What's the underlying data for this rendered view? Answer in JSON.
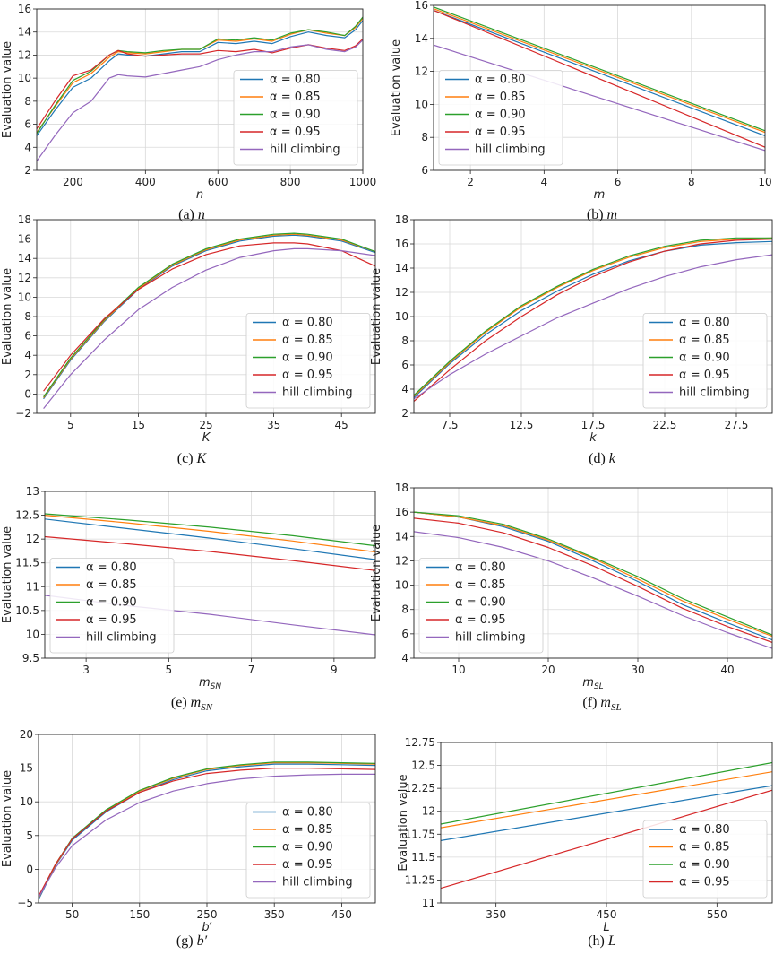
{
  "colors": {
    "a080": "#1f77b4",
    "a085": "#ff7f0e",
    "a090": "#2ca02c",
    "a095": "#d62728",
    "hill": "#9467bd",
    "grid": "#d9d9d9"
  },
  "chart_data": [
    {
      "type": "line",
      "caption": "(a) n",
      "xlabel": "n",
      "ylabel": "Evaluation value",
      "xlim": [
        100,
        1000
      ],
      "ylim": [
        2,
        16
      ],
      "xticks": [
        200,
        400,
        600,
        800,
        1000
      ],
      "xtick_labels": [
        "200",
        "400",
        "600",
        "800",
        "1000"
      ],
      "yticks": [
        2,
        4,
        6,
        8,
        10,
        12,
        14,
        16
      ],
      "ytick_labels": [
        "2",
        "4",
        "6",
        "8",
        "10",
        "12",
        "14",
        "16"
      ],
      "legend": "lower-right",
      "x": [
        100,
        150,
        200,
        250,
        300,
        325,
        350,
        400,
        450,
        500,
        550,
        600,
        650,
        700,
        750,
        800,
        850,
        900,
        950,
        980,
        1000
      ],
      "series": [
        {
          "name": "α = 0.80",
          "color": "a080",
          "values": [
            5.0,
            7.2,
            9.2,
            10.0,
            11.5,
            12.1,
            12.0,
            11.9,
            12.1,
            12.3,
            12.3,
            13.1,
            13.0,
            13.2,
            13.0,
            13.6,
            14.0,
            13.7,
            13.5,
            14.2,
            15.0
          ]
        },
        {
          "name": "α = 0.85",
          "color": "a085",
          "values": [
            5.3,
            7.5,
            9.6,
            10.4,
            11.8,
            12.3,
            12.2,
            12.1,
            12.3,
            12.5,
            12.5,
            13.3,
            13.2,
            13.4,
            13.2,
            13.8,
            14.2,
            13.9,
            13.7,
            14.4,
            15.2
          ]
        },
        {
          "name": "α = 0.90",
          "color": "a090",
          "values": [
            5.2,
            7.6,
            9.8,
            10.6,
            12.0,
            12.4,
            12.3,
            12.2,
            12.4,
            12.5,
            12.5,
            13.4,
            13.3,
            13.5,
            13.3,
            13.9,
            14.2,
            14.0,
            13.7,
            14.5,
            15.3
          ]
        },
        {
          "name": "α = 0.95",
          "color": "a095",
          "values": [
            5.6,
            8.0,
            10.2,
            10.7,
            12.0,
            12.4,
            12.1,
            11.9,
            12.0,
            12.1,
            12.1,
            12.4,
            12.3,
            12.5,
            12.2,
            12.6,
            12.9,
            12.6,
            12.4,
            12.8,
            13.4
          ]
        },
        {
          "name": "hill climbing",
          "color": "hill",
          "values": [
            2.8,
            5.0,
            7.0,
            8.0,
            10.0,
            10.3,
            10.2,
            10.1,
            10.4,
            10.7,
            11.0,
            11.6,
            12.0,
            12.3,
            12.3,
            12.7,
            12.9,
            12.5,
            12.3,
            12.7,
            13.3
          ]
        }
      ]
    },
    {
      "type": "line",
      "caption": "(b) m",
      "xlabel": "m",
      "ylabel": "Evaluation value",
      "xlim": [
        1,
        10
      ],
      "ylim": [
        6,
        16
      ],
      "xticks": [
        2,
        4,
        6,
        8,
        10
      ],
      "xtick_labels": [
        "2",
        "4",
        "6",
        "8",
        "10"
      ],
      "yticks": [
        6,
        8,
        10,
        12,
        14,
        16
      ],
      "ytick_labels": [
        "6",
        "8",
        "10",
        "12",
        "14",
        "16"
      ],
      "legend": "lower-left",
      "x": [
        1,
        10
      ],
      "series": [
        {
          "name": "α = 0.80",
          "color": "a080",
          "values": [
            15.7,
            8.1
          ]
        },
        {
          "name": "α = 0.85",
          "color": "a085",
          "values": [
            15.8,
            8.3
          ]
        },
        {
          "name": "α = 0.90",
          "color": "a090",
          "values": [
            15.9,
            8.4
          ]
        },
        {
          "name": "α = 0.95",
          "color": "a095",
          "values": [
            15.7,
            7.4
          ]
        },
        {
          "name": "hill climbing",
          "color": "hill",
          "values": [
            13.6,
            7.2
          ]
        }
      ]
    },
    {
      "type": "line",
      "caption": "(c) K",
      "xlabel": "K",
      "ylabel": "Evaluation value",
      "xlim": [
        0,
        50
      ],
      "ylim": [
        -2,
        18
      ],
      "xticks": [
        5,
        15,
        25,
        35,
        45
      ],
      "xtick_labels": [
        "5",
        "15",
        "25",
        "35",
        "45"
      ],
      "yticks": [
        -2,
        0,
        2,
        4,
        6,
        8,
        10,
        12,
        14,
        16,
        18
      ],
      "ytick_labels": [
        "−2",
        "0",
        "2",
        "4",
        "6",
        "8",
        "10",
        "12",
        "14",
        "16",
        "18"
      ],
      "legend": "lower-right",
      "x": [
        1,
        5,
        10,
        15,
        20,
        25,
        30,
        35,
        38,
        40,
        45,
        50
      ],
      "series": [
        {
          "name": "α = 0.80",
          "color": "a080",
          "values": [
            -0.5,
            3.5,
            7.5,
            10.8,
            13.2,
            14.8,
            15.8,
            16.3,
            16.4,
            16.3,
            15.8,
            14.6
          ]
        },
        {
          "name": "α = 0.85",
          "color": "a085",
          "values": [
            -0.4,
            3.6,
            7.6,
            10.9,
            13.3,
            14.9,
            15.9,
            16.4,
            16.5,
            16.4,
            15.9,
            14.7
          ]
        },
        {
          "name": "α = 0.90",
          "color": "a090",
          "values": [
            -0.3,
            3.7,
            7.7,
            11.0,
            13.4,
            15.0,
            16.0,
            16.5,
            16.6,
            16.5,
            16.0,
            14.7
          ]
        },
        {
          "name": "α = 0.95",
          "color": "a095",
          "values": [
            0.3,
            4.0,
            7.8,
            10.8,
            12.9,
            14.4,
            15.3,
            15.6,
            15.6,
            15.5,
            14.8,
            13.2
          ]
        },
        {
          "name": "hill climbing",
          "color": "hill",
          "values": [
            -1.5,
            2.0,
            5.6,
            8.7,
            11.0,
            12.8,
            14.1,
            14.8,
            15.0,
            15.0,
            14.8,
            14.3
          ]
        }
      ]
    },
    {
      "type": "line",
      "caption": "(d) k",
      "xlabel": "k",
      "ylabel": "Evaluation value",
      "xlim": [
        5,
        30
      ],
      "ylim": [
        2,
        18
      ],
      "xticks": [
        7.5,
        12.5,
        17.5,
        22.5,
        27.5
      ],
      "xtick_labels": [
        "7.5",
        "12.5",
        "17.5",
        "22.5",
        "27.5"
      ],
      "yticks": [
        2,
        4,
        6,
        8,
        10,
        12,
        14,
        16,
        18
      ],
      "ytick_labels": [
        "2",
        "4",
        "6",
        "8",
        "10",
        "12",
        "14",
        "16",
        "18"
      ],
      "legend": "lower-right",
      "x": [
        5,
        7.5,
        10,
        12.5,
        15,
        17.5,
        20,
        22.5,
        25,
        27.5,
        30
      ],
      "series": [
        {
          "name": "α = 0.80",
          "color": "a080",
          "values": [
            3.3,
            6.1,
            8.5,
            10.5,
            12.1,
            13.5,
            14.6,
            15.4,
            15.9,
            16.1,
            16.2
          ]
        },
        {
          "name": "α = 0.85",
          "color": "a085",
          "values": [
            3.4,
            6.2,
            8.7,
            10.8,
            12.4,
            13.8,
            14.9,
            15.7,
            16.2,
            16.4,
            16.5
          ]
        },
        {
          "name": "α = 0.90",
          "color": "a090",
          "values": [
            3.5,
            6.3,
            8.8,
            10.9,
            12.5,
            13.9,
            15.0,
            15.8,
            16.3,
            16.5,
            16.5
          ]
        },
        {
          "name": "α = 0.95",
          "color": "a095",
          "values": [
            3.0,
            5.6,
            8.0,
            10.0,
            11.8,
            13.3,
            14.5,
            15.4,
            16.0,
            16.3,
            16.4
          ]
        },
        {
          "name": "hill climbing",
          "color": "hill",
          "values": [
            3.2,
            5.2,
            6.9,
            8.4,
            9.9,
            11.1,
            12.3,
            13.3,
            14.1,
            14.7,
            15.1
          ]
        }
      ]
    },
    {
      "type": "line",
      "caption": "(e) m_SN",
      "xlabel": "m_SN",
      "ylabel": "Evaluation value",
      "xlim": [
        2,
        10
      ],
      "ylim": [
        9.5,
        13
      ],
      "xticks": [
        3,
        5,
        7,
        9
      ],
      "xtick_labels": [
        "3",
        "5",
        "7",
        "9"
      ],
      "yticks": [
        9.5,
        10,
        10.5,
        11,
        11.5,
        12,
        12.5,
        13
      ],
      "ytick_labels": [
        "9.5",
        "10",
        "10.5",
        "11",
        "11.5",
        "12",
        "12.5",
        "13"
      ],
      "legend": "lower-left",
      "x": [
        2,
        4,
        6,
        8,
        10
      ],
      "series": [
        {
          "name": "α = 0.80",
          "color": "a080",
          "values": [
            12.42,
            12.22,
            12.02,
            11.8,
            11.57
          ]
        },
        {
          "name": "α = 0.85",
          "color": "a085",
          "values": [
            12.5,
            12.34,
            12.16,
            11.96,
            11.73
          ]
        },
        {
          "name": "α = 0.90",
          "color": "a090",
          "values": [
            12.53,
            12.4,
            12.25,
            12.07,
            11.86
          ]
        },
        {
          "name": "α = 0.95",
          "color": "a095",
          "values": [
            12.05,
            11.9,
            11.74,
            11.55,
            11.34
          ]
        },
        {
          "name": "hill climbing",
          "color": "hill",
          "values": [
            10.82,
            10.6,
            10.42,
            10.2,
            9.99
          ]
        }
      ]
    },
    {
      "type": "line",
      "caption": "(f) m_SL",
      "xlabel": "m_SL",
      "ylabel": "Evaluation value",
      "xlim": [
        5,
        45
      ],
      "ylim": [
        4,
        18
      ],
      "xticks": [
        10,
        20,
        30,
        40
      ],
      "xtick_labels": [
        "10",
        "20",
        "30",
        "40"
      ],
      "yticks": [
        4,
        6,
        8,
        10,
        12,
        14,
        16,
        18
      ],
      "ytick_labels": [
        "4",
        "6",
        "8",
        "10",
        "12",
        "14",
        "16",
        "18"
      ],
      "legend": "lower-left",
      "x": [
        5,
        10,
        15,
        20,
        25,
        30,
        35,
        40,
        45
      ],
      "series": [
        {
          "name": "α = 0.80",
          "color": "a080",
          "values": [
            16.0,
            15.6,
            14.8,
            13.6,
            12.0,
            10.3,
            8.4,
            6.9,
            5.5
          ]
        },
        {
          "name": "α = 0.85",
          "color": "a085",
          "values": [
            16.0,
            15.6,
            14.9,
            13.7,
            12.2,
            10.5,
            8.7,
            7.2,
            5.8
          ]
        },
        {
          "name": "α = 0.90",
          "color": "a090",
          "values": [
            16.0,
            15.7,
            15.0,
            13.8,
            12.3,
            10.7,
            8.9,
            7.4,
            5.9
          ]
        },
        {
          "name": "α = 0.95",
          "color": "a095",
          "values": [
            15.5,
            15.1,
            14.3,
            13.1,
            11.6,
            9.9,
            8.1,
            6.6,
            5.3
          ]
        },
        {
          "name": "hill climbing",
          "color": "hill",
          "values": [
            14.4,
            13.9,
            13.1,
            12.0,
            10.6,
            9.1,
            7.5,
            6.1,
            4.8
          ]
        }
      ]
    },
    {
      "type": "line",
      "caption": "(g) b′",
      "xlabel": "b′",
      "ylabel": "Evaluation value",
      "xlim": [
        0,
        500
      ],
      "ylim": [
        -5,
        20
      ],
      "xticks": [
        50,
        150,
        250,
        350,
        450
      ],
      "xtick_labels": [
        "50",
        "150",
        "250",
        "350",
        "450"
      ],
      "yticks": [
        -5,
        0,
        5,
        10,
        15,
        20
      ],
      "ytick_labels": [
        "−5",
        "0",
        "5",
        "10",
        "15",
        "20"
      ],
      "legend": "lower-right",
      "x": [
        0,
        25,
        50,
        100,
        150,
        200,
        250,
        300,
        350,
        400,
        450,
        500
      ],
      "series": [
        {
          "name": "α = 0.80",
          "color": "a080",
          "values": [
            -4.5,
            0.5,
            4.3,
            8.5,
            11.4,
            13.3,
            14.6,
            15.2,
            15.6,
            15.6,
            15.5,
            15.4
          ]
        },
        {
          "name": "α = 0.85",
          "color": "a085",
          "values": [
            -4.3,
            0.6,
            4.5,
            8.7,
            11.6,
            13.5,
            14.8,
            15.4,
            15.8,
            15.8,
            15.7,
            15.6
          ]
        },
        {
          "name": "α = 0.90",
          "color": "a090",
          "values": [
            -4.2,
            0.7,
            4.6,
            8.8,
            11.7,
            13.6,
            14.9,
            15.5,
            15.9,
            15.9,
            15.8,
            15.7
          ]
        },
        {
          "name": "α = 0.95",
          "color": "a095",
          "values": [
            -4.0,
            0.7,
            4.5,
            8.6,
            11.4,
            13.1,
            14.2,
            14.7,
            15.0,
            15.0,
            14.9,
            14.8
          ]
        },
        {
          "name": "hill climbing",
          "color": "hill",
          "values": [
            -4.2,
            0.2,
            3.5,
            7.3,
            9.9,
            11.6,
            12.7,
            13.4,
            13.8,
            14.0,
            14.1,
            14.1
          ]
        }
      ]
    },
    {
      "type": "line",
      "caption": "(h) L",
      "xlabel": "L",
      "ylabel": "Evaluation value",
      "xlim": [
        300,
        600
      ],
      "ylim": [
        11,
        12.75
      ],
      "xticks": [
        350,
        450,
        550
      ],
      "xtick_labels": [
        "350",
        "450",
        "550"
      ],
      "yticks": [
        11,
        11.25,
        11.5,
        11.75,
        12,
        12.25,
        12.5,
        12.75
      ],
      "ytick_labels": [
        "11",
        "11.25",
        "11.5",
        "11.75",
        "12",
        "12.25",
        "12.5",
        "12.75"
      ],
      "legend": "lower-right",
      "x": [
        300,
        600
      ],
      "series": [
        {
          "name": "α = 0.80",
          "color": "a080",
          "values": [
            11.68,
            12.28
          ]
        },
        {
          "name": "α = 0.85",
          "color": "a085",
          "values": [
            11.82,
            12.43
          ]
        },
        {
          "name": "α = 0.90",
          "color": "a090",
          "values": [
            11.86,
            12.53
          ]
        },
        {
          "name": "α = 0.95",
          "color": "a095",
          "values": [
            11.16,
            12.23
          ]
        }
      ]
    }
  ]
}
